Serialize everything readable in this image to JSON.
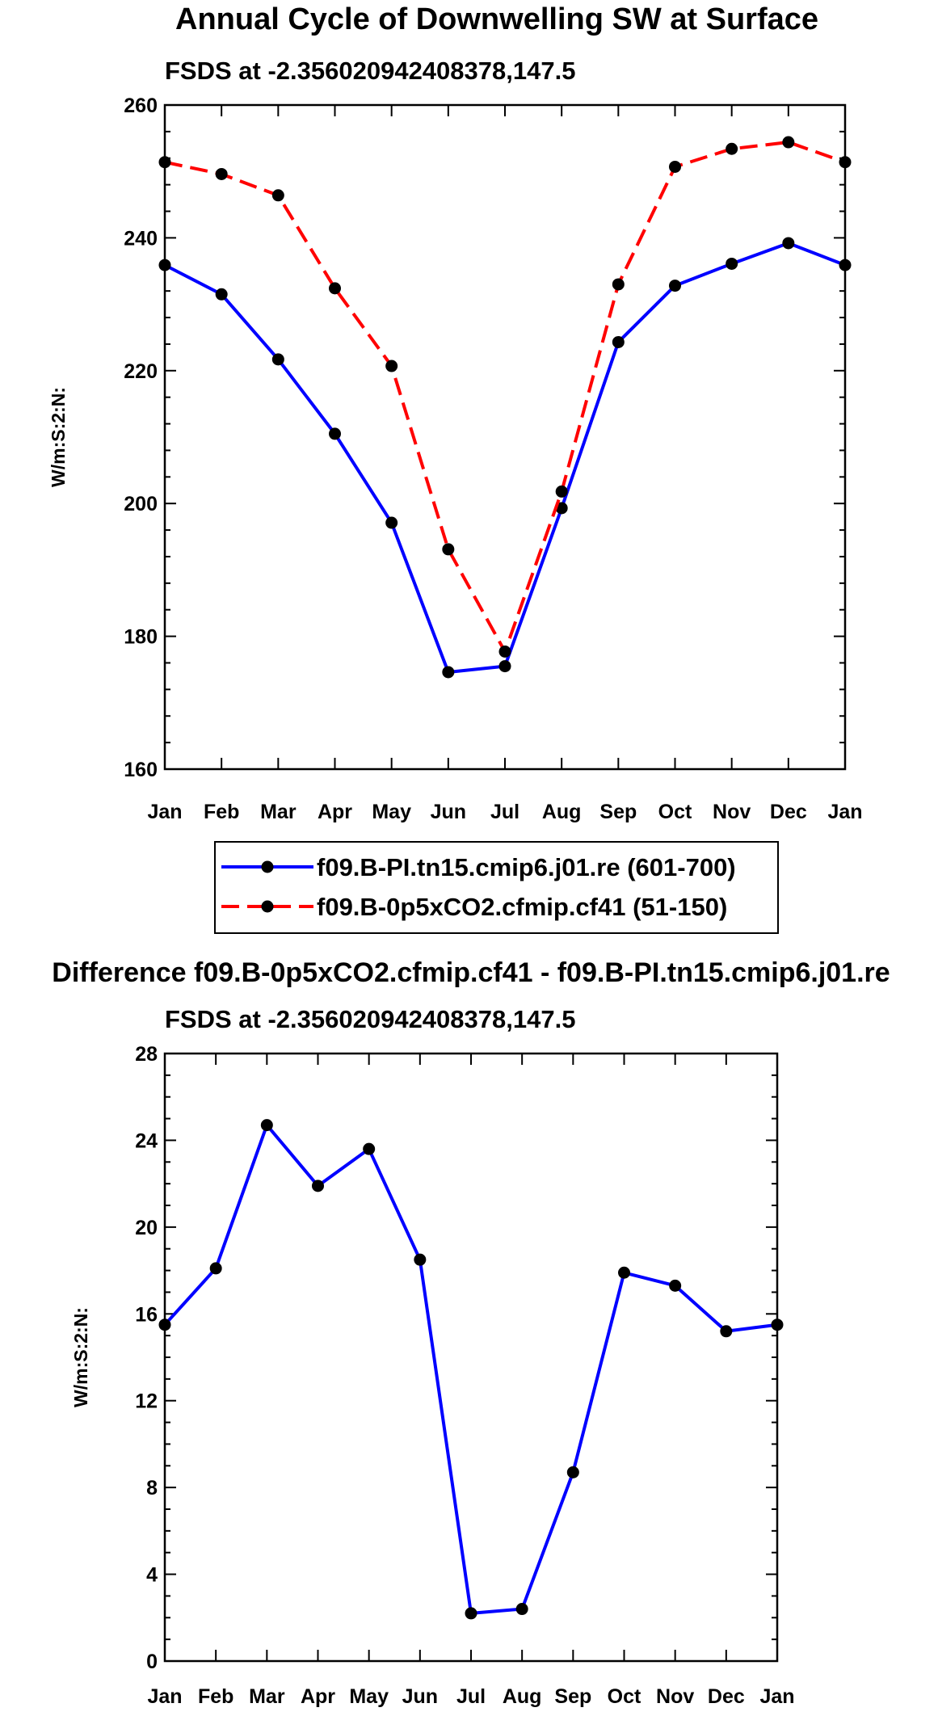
{
  "chart_data": [
    {
      "type": "line",
      "title": "Annual Cycle of Downwelling SW at Surface",
      "subtitle": "FSDS at -2.356020942408378,147.5",
      "xlabel": "",
      "ylabel": "W/m:S:2:N:",
      "categories": [
        "Jan",
        "Feb",
        "Mar",
        "Apr",
        "May",
        "Jun",
        "Jul",
        "Aug",
        "Sep",
        "Oct",
        "Nov",
        "Dec",
        "Jan"
      ],
      "ylim": [
        160,
        260
      ],
      "yticks": [
        160,
        180,
        200,
        220,
        240,
        260
      ],
      "yminor_step": 4,
      "series": [
        {
          "name": "f09.B-PI.tn15.cmip6.j01.re (601-700)",
          "color": "#0000ff",
          "dash": "solid",
          "values": [
            235.9,
            231.5,
            221.7,
            210.5,
            197.1,
            174.6,
            175.5,
            199.3,
            224.3,
            232.8,
            236.1,
            239.2,
            235.9
          ]
        },
        {
          "name": "f09.B-0p5xCO2.cfmip.cf41 (51-150)",
          "color": "#ff0000",
          "dash": "dashed",
          "values": [
            251.4,
            249.6,
            246.4,
            232.4,
            220.7,
            193.1,
            177.7,
            201.8,
            233.0,
            250.7,
            253.4,
            254.4,
            251.4
          ]
        }
      ],
      "legend": "below"
    },
    {
      "type": "line",
      "title": "Difference f09.B-0p5xCO2.cfmip.cf41 - f09.B-PI.tn15.cmip6.j01.re",
      "subtitle": "FSDS at -2.356020942408378,147.5",
      "xlabel": "",
      "ylabel": "W/m:S:2:N:",
      "categories": [
        "Jan",
        "Feb",
        "Mar",
        "Apr",
        "May",
        "Jun",
        "Jul",
        "Aug",
        "Sep",
        "Oct",
        "Nov",
        "Dec",
        "Jan"
      ],
      "ylim": [
        0,
        28
      ],
      "yticks": [
        0,
        4,
        8,
        12,
        16,
        20,
        24,
        28
      ],
      "yminor_step": 1,
      "series": [
        {
          "name": "difference",
          "color": "#0000ff",
          "dash": "solid",
          "values": [
            15.5,
            18.1,
            24.7,
            21.9,
            23.6,
            18.5,
            2.2,
            2.4,
            8.7,
            17.9,
            17.3,
            15.2,
            15.5
          ]
        }
      ]
    }
  ]
}
